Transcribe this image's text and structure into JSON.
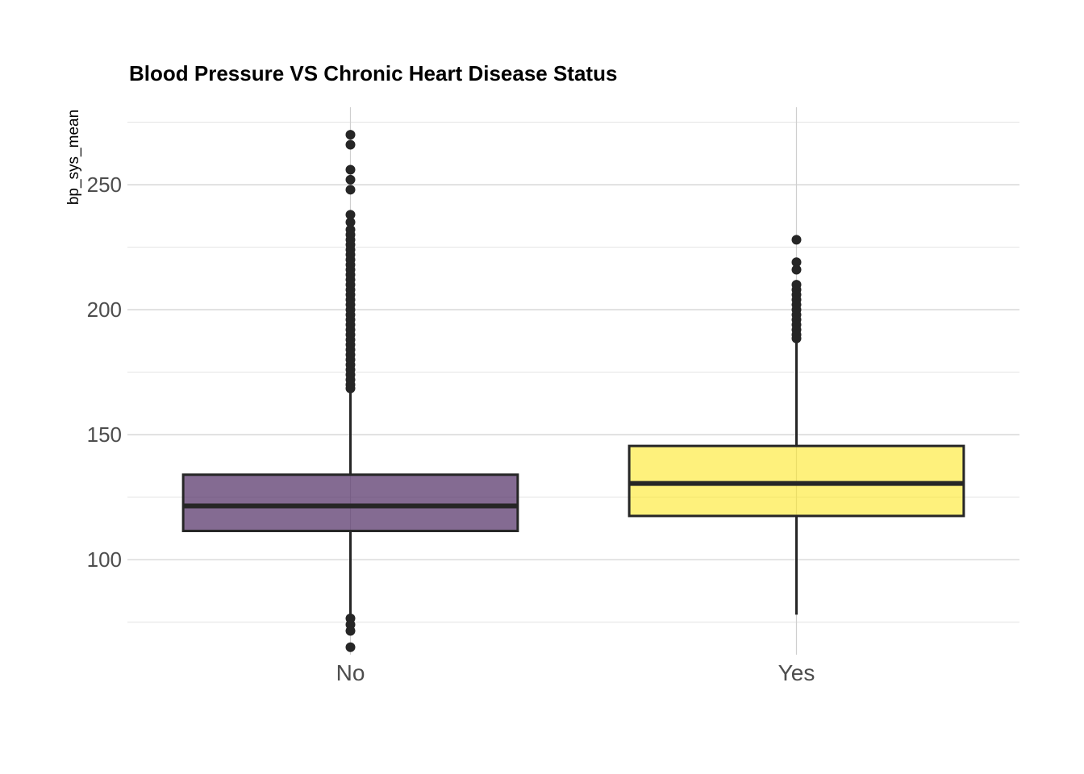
{
  "chart_data": {
    "type": "boxplot",
    "title": "Blood Pressure VS Chronic Heart Disease Status",
    "xlabel": "",
    "ylabel": "bp_sys_mean",
    "ylim": [
      62,
      281
    ],
    "y_ticks": [
      100,
      150,
      200,
      250
    ],
    "y_tick_labels": [
      "100",
      "150",
      "200",
      "250"
    ],
    "grid": true,
    "legend": "none",
    "categories": [
      "No",
      "Yes"
    ],
    "boxes": [
      {
        "category": "No",
        "color": "#5b3a6e",
        "fill_opacity": 0.75,
        "q1": 111.5,
        "median": 121.5,
        "q3": 134,
        "whisker_low": 77,
        "whisker_high": 168,
        "outliers": [
          270,
          266,
          256,
          252,
          248,
          238,
          235,
          232,
          230,
          228,
          226,
          224,
          222,
          220,
          218,
          216,
          214,
          212,
          210,
          208,
          206,
          204,
          202,
          200,
          198,
          196,
          194,
          192,
          190,
          188,
          186,
          184,
          182,
          180,
          178,
          176,
          174,
          172,
          170,
          168.5,
          76.5,
          74,
          71.5,
          65
        ]
      },
      {
        "category": "Yes",
        "color": "#fde725",
        "fill_opacity": 0.6,
        "q1": 117.5,
        "median": 130.5,
        "q3": 145.5,
        "whisker_low": 78,
        "whisker_high": 187.5,
        "outliers": [
          228,
          219,
          216,
          210,
          208,
          206,
          204,
          202,
          200,
          198,
          196,
          194,
          192,
          190,
          188.5
        ]
      }
    ]
  }
}
